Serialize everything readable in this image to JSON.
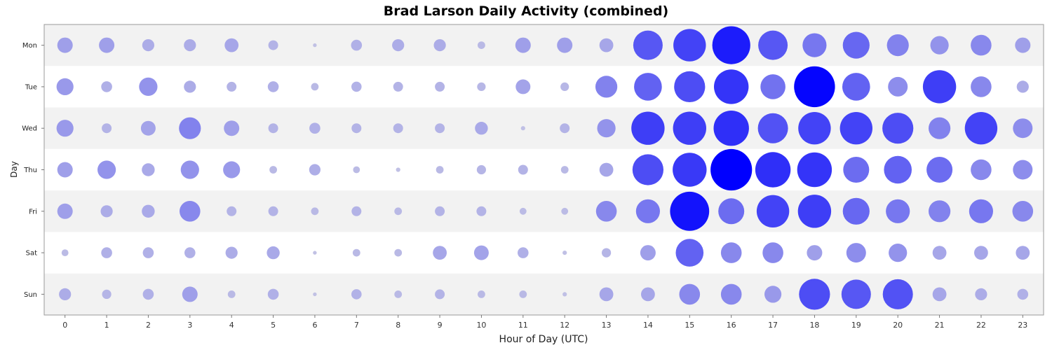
{
  "chart_data": {
    "type": "scatter",
    "title": "Brad Larson Daily Activity (combined)",
    "xlabel": "Hour of Day (UTC)",
    "ylabel": "Day",
    "x_categories": [
      "0",
      "1",
      "2",
      "3",
      "4",
      "5",
      "6",
      "7",
      "8",
      "9",
      "10",
      "11",
      "12",
      "13",
      "14",
      "15",
      "16",
      "17",
      "18",
      "19",
      "20",
      "21",
      "22",
      "23"
    ],
    "y_categories": [
      "Mon",
      "Tue",
      "Wed",
      "Thu",
      "Fri",
      "Sat",
      "Sun"
    ],
    "bubble_scale_max": 30,
    "colors": {
      "low": "#c4c4e4",
      "high": "#0000ff",
      "band_light": "#f2f2f2",
      "band_white": "#ffffff"
    },
    "values": [
      [
        5,
        5,
        3,
        3,
        4,
        2,
        0.3,
        2.5,
        3,
        3,
        1.2,
        5,
        5,
        4,
        18,
        22,
        30,
        18,
        12,
        15,
        10,
        7,
        9,
        5
      ],
      [
        6,
        2.5,
        7,
        3,
        2,
        2.5,
        1.2,
        2.2,
        2,
        2,
        1.5,
        4.5,
        1.5,
        10,
        16,
        20,
        25,
        13,
        35,
        16,
        8,
        23,
        9,
        3
      ],
      [
        6,
        2,
        4.5,
        10,
        5,
        2,
        2.5,
        2,
        2,
        2,
        3.5,
        0.4,
        2,
        7,
        23,
        23,
        26,
        19,
        22,
        22,
        20,
        10,
        22,
        8
      ],
      [
        5,
        7,
        3.5,
        7,
        6,
        1.2,
        2.7,
        1,
        0.4,
        1.2,
        1.8,
        2,
        1.2,
        4,
        20,
        24,
        36,
        26,
        25,
        14,
        16,
        14,
        9,
        8
      ],
      [
        5,
        3,
        3.5,
        9,
        2,
        2,
        1.2,
        2,
        1.2,
        2,
        2,
        1,
        1,
        9,
        12,
        32,
        14,
        22,
        23,
        15,
        12,
        10,
        12,
        9
      ],
      [
        1,
        2.5,
        2.5,
        2.5,
        3,
        3.5,
        0.3,
        1.2,
        1.2,
        4,
        4.5,
        2.5,
        0.4,
        1.8,
        5,
        16,
        9,
        9,
        5,
        8,
        7,
        4,
        4,
        4
      ],
      [
        3,
        1.8,
        2.5,
        5,
        1.2,
        2.5,
        0.3,
        2.2,
        1.2,
        2,
        1.2,
        1.2,
        0.4,
        4,
        4,
        9,
        9,
        6,
        20,
        18,
        19,
        4,
        3,
        2.5
      ]
    ]
  }
}
